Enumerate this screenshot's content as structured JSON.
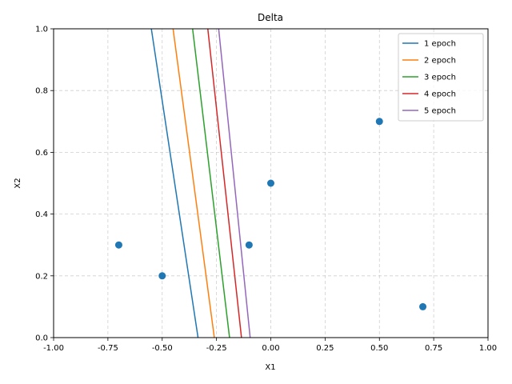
{
  "chart_data": {
    "type": "line",
    "title": "Delta",
    "xlabel": "X1",
    "ylabel": "X2",
    "xlim": [
      -1.0,
      1.0
    ],
    "ylim": [
      0.0,
      1.0
    ],
    "xticks": [
      "-1.00",
      "-0.75",
      "-0.50",
      "-0.25",
      "0.00",
      "0.25",
      "0.50",
      "0.75",
      "1.00"
    ],
    "yticks": [
      "0.0",
      "0.2",
      "0.4",
      "0.6",
      "0.8",
      "1.0"
    ],
    "grid": true,
    "legend_position": "top-right",
    "series": [
      {
        "name": "1 epoch",
        "color": "#1f77b4",
        "points": [
          [
            -0.55,
            1.0
          ],
          [
            -0.335,
            0.0
          ]
        ]
      },
      {
        "name": "2 epoch",
        "color": "#ff7f0e",
        "points": [
          [
            -0.45,
            1.0
          ],
          [
            -0.26,
            0.0
          ]
        ]
      },
      {
        "name": "3 epoch",
        "color": "#2ca02c",
        "points": [
          [
            -0.36,
            1.0
          ],
          [
            -0.19,
            0.0
          ]
        ]
      },
      {
        "name": "4 epoch",
        "color": "#d62728",
        "points": [
          [
            -0.29,
            1.0
          ],
          [
            -0.135,
            0.0
          ]
        ]
      },
      {
        "name": "5 epoch",
        "color": "#9467bd",
        "points": [
          [
            -0.24,
            1.0
          ],
          [
            -0.095,
            0.0
          ]
        ]
      }
    ],
    "scatter": {
      "color": "#1f77b4",
      "points": [
        [
          -0.7,
          0.3
        ],
        [
          -0.5,
          0.2
        ],
        [
          -0.1,
          0.3
        ],
        [
          0.0,
          0.5
        ],
        [
          0.5,
          0.7
        ],
        [
          0.7,
          0.1
        ]
      ]
    }
  }
}
